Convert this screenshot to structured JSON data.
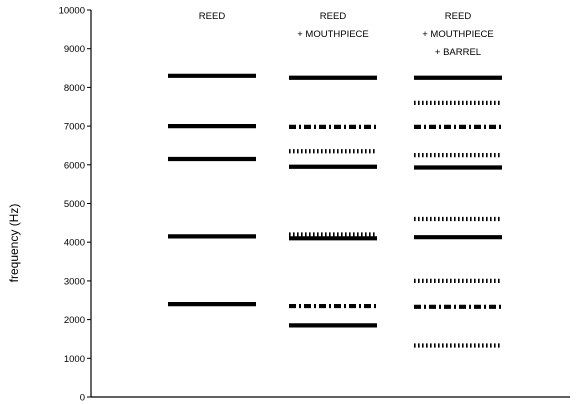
{
  "chart_data": {
    "type": "scatter",
    "ylabel": "frequency (Hz)",
    "ylim": [
      0,
      10000
    ],
    "yticks": [
      0,
      1000,
      2000,
      3000,
      4000,
      5000,
      6000,
      7000,
      8000,
      9000,
      10000
    ],
    "grid": false,
    "columns": [
      {
        "header_lines": [
          "REED"
        ],
        "lines": [
          {
            "frequency": 8300,
            "style": "solid"
          },
          {
            "frequency": 7000,
            "style": "solid"
          },
          {
            "frequency": 6150,
            "style": "solid"
          },
          {
            "frequency": 4150,
            "style": "solid"
          },
          {
            "frequency": 2400,
            "style": "solid"
          }
        ]
      },
      {
        "header_lines": [
          "REED",
          "+ MOUTHPIECE"
        ],
        "lines": [
          {
            "frequency": 8250,
            "style": "solid"
          },
          {
            "frequency": 6980,
            "style": "dashdot"
          },
          {
            "frequency": 6350,
            "style": "dotted"
          },
          {
            "frequency": 5950,
            "style": "solid"
          },
          {
            "frequency": 4200,
            "style": "dotted"
          },
          {
            "frequency": 4100,
            "style": "solid"
          },
          {
            "frequency": 2350,
            "style": "dashdot"
          },
          {
            "frequency": 1850,
            "style": "solid"
          }
        ]
      },
      {
        "header_lines": [
          "REED",
          "+ MOUTHPIECE",
          "+ BARREL"
        ],
        "lines": [
          {
            "frequency": 8250,
            "style": "solid"
          },
          {
            "frequency": 7600,
            "style": "dotted"
          },
          {
            "frequency": 6980,
            "style": "dashdot"
          },
          {
            "frequency": 6250,
            "style": "dotted"
          },
          {
            "frequency": 5930,
            "style": "solid"
          },
          {
            "frequency": 4600,
            "style": "dotted"
          },
          {
            "frequency": 4130,
            "style": "solid"
          },
          {
            "frequency": 3000,
            "style": "dotted"
          },
          {
            "frequency": 2330,
            "style": "dashdot"
          },
          {
            "frequency": 1330,
            "style": "dotted"
          }
        ]
      }
    ]
  }
}
